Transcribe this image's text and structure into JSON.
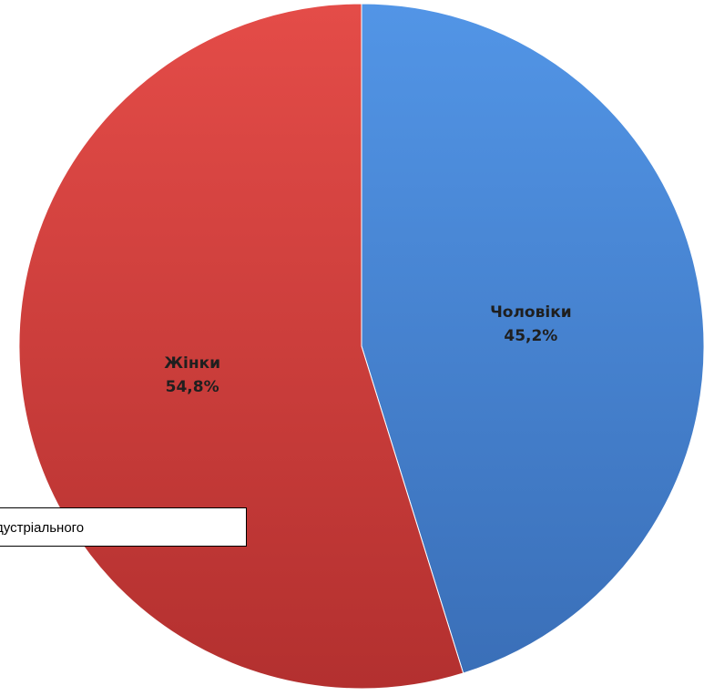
{
  "chart_data": {
    "type": "pie",
    "title": "",
    "slices": [
      {
        "label": "Чоловіки",
        "value": 45.2,
        "display": "45,2%",
        "color": "#4a86d8"
      },
      {
        "label": "Жінки",
        "value": 54.8,
        "display": "54,8%",
        "color": "#d8433f"
      }
    ],
    "start": "top",
    "direction": "clockwise"
  },
  "callout": {
    "text": "дустріального"
  }
}
